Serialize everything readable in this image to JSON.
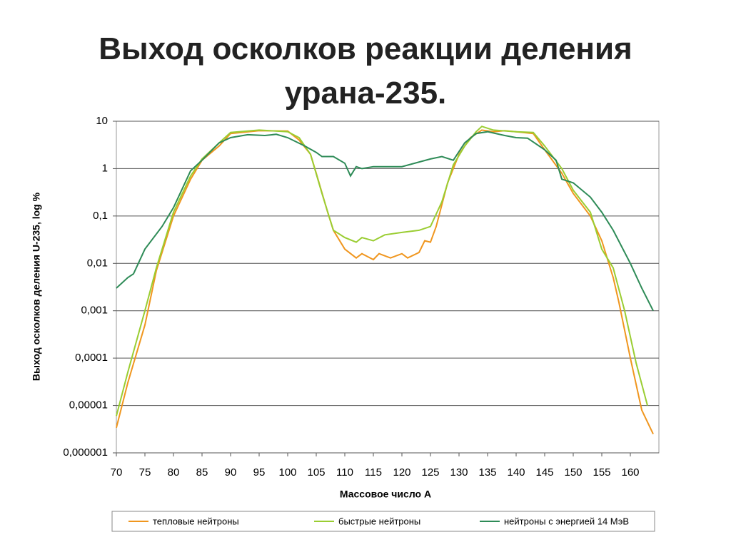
{
  "chart_data": {
    "type": "line",
    "title": "Выход осколков реакции деления урана-235.",
    "y_label": "Выход осколков деления U-235, log %",
    "x_label": "Массовое число А",
    "log_y": true,
    "grid": true,
    "legend": "bottom",
    "xlim": [
      70,
      165
    ],
    "xticks": [
      70,
      75,
      80,
      85,
      90,
      95,
      100,
      105,
      110,
      115,
      120,
      125,
      130,
      135,
      140,
      145,
      150,
      155,
      160
    ],
    "ylim": [
      1e-06,
      10
    ],
    "yticks": [
      {
        "value": 1e-06,
        "label": "0,000001"
      },
      {
        "value": 1e-05,
        "label": "0,00001"
      },
      {
        "value": 0.0001,
        "label": "0,0001"
      },
      {
        "value": 0.001,
        "label": "0,001"
      },
      {
        "value": 0.01,
        "label": "0,01"
      },
      {
        "value": 0.1,
        "label": "0,1"
      },
      1,
      10
    ],
    "series": [
      {
        "name": "тепловые нейтроны",
        "color": "#f0961e",
        "x": [
          70,
          72,
          75,
          77,
          80,
          83,
          85,
          88,
          90,
          95,
          100,
          102,
          104,
          105,
          107,
          108,
          110,
          112,
          113,
          115,
          116,
          118,
          120,
          121,
          123,
          124,
          125,
          126,
          128,
          130,
          132,
          134,
          136,
          138,
          140,
          143,
          145,
          148,
          150,
          153,
          155,
          157,
          158,
          160,
          162,
          164
        ],
        "values": [
          3.4e-06,
          3e-05,
          0.0005,
          0.007,
          0.1,
          0.6,
          1.5,
          3,
          5.5,
          6.3,
          6.2,
          4,
          2,
          0.8,
          0.12,
          0.05,
          0.02,
          0.013,
          0.016,
          0.012,
          0.016,
          0.013,
          0.016,
          0.013,
          0.017,
          0.03,
          0.028,
          0.06,
          0.5,
          2,
          4.5,
          6.5,
          6,
          6.3,
          6,
          5.5,
          2.5,
          0.8,
          0.3,
          0.1,
          0.03,
          0.005,
          0.0015,
          0.0001,
          8e-06,
          2.5e-06
        ]
      },
      {
        "name": "быстрые нейтроны",
        "color": "#9acd32",
        "x": [
          70,
          72,
          75,
          77,
          80,
          83,
          85,
          88,
          90,
          95,
          100,
          102,
          104,
          106,
          108,
          110,
          112,
          113,
          115,
          117,
          120,
          123,
          125,
          127,
          129,
          131,
          133,
          134,
          136,
          140,
          143,
          145,
          148,
          150,
          153,
          155,
          157,
          159,
          161,
          163
        ],
        "values": [
          6e-06,
          5e-05,
          0.001,
          0.008,
          0.12,
          0.7,
          1.6,
          3.5,
          5.8,
          6.5,
          6,
          4.5,
          2,
          0.3,
          0.05,
          0.035,
          0.028,
          0.035,
          0.03,
          0.04,
          0.045,
          0.05,
          0.06,
          0.2,
          1.2,
          3,
          6,
          7.8,
          6.5,
          6,
          5.8,
          3,
          1,
          0.35,
          0.12,
          0.02,
          0.008,
          0.001,
          8e-05,
          1e-05
        ]
      },
      {
        "name": "нейтроны с энергией 14 МэВ",
        "color": "#2e8b57",
        "x": [
          70,
          72,
          73,
          75,
          78,
          80,
          83,
          85,
          88,
          90,
          93,
          96,
          98,
          100,
          103,
          105,
          106,
          108,
          110,
          111,
          112,
          113,
          115,
          120,
          125,
          127,
          129,
          131,
          133,
          135,
          138,
          140,
          142,
          145,
          147,
          148,
          150,
          153,
          155,
          157,
          160,
          162,
          164
        ],
        "values": [
          0.003,
          0.005,
          0.006,
          0.02,
          0.06,
          0.15,
          0.9,
          1.5,
          3.5,
          4.5,
          5.2,
          5,
          5.3,
          4.5,
          3,
          2.2,
          1.8,
          1.8,
          1.3,
          0.7,
          1.1,
          1,
          1.1,
          1.1,
          1.6,
          1.8,
          1.5,
          3.5,
          5.5,
          6,
          5,
          4.5,
          4.4,
          2.5,
          1.5,
          0.6,
          0.5,
          0.25,
          0.12,
          0.05,
          0.01,
          0.003,
          0.001
        ]
      }
    ]
  }
}
